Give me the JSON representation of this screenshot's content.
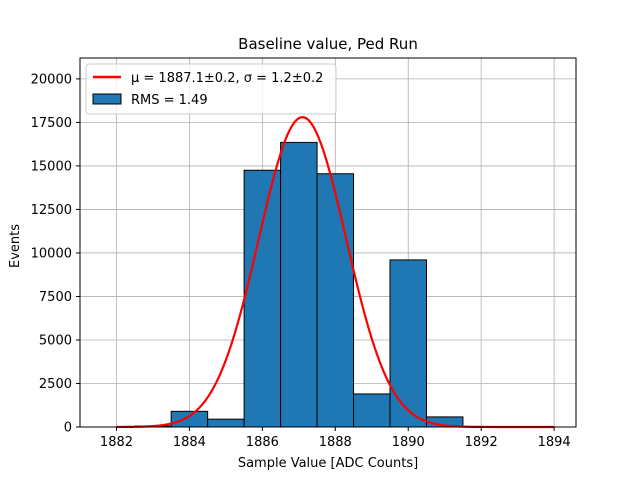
{
  "chart_data": {
    "type": "bar",
    "title": "Baseline value, Ped Run",
    "xlabel": "Sample Value [ADC Counts]",
    "ylabel": "Events",
    "xlim": [
      1881,
      1894.6
    ],
    "ylim": [
      0,
      21200
    ],
    "xticks": [
      1882,
      1884,
      1886,
      1888,
      1890,
      1892,
      1894
    ],
    "yticks": [
      0,
      2500,
      5000,
      7500,
      10000,
      12500,
      15000,
      17500,
      20000
    ],
    "grid": true,
    "legend_position": "top-left",
    "series": [
      {
        "name": "RMS = 1.49",
        "type": "histogram",
        "color": "#1f77b4",
        "edgecolor": "#000000",
        "bins": [
          {
            "x0": 1882.5,
            "x1": 1883.5,
            "value": 60
          },
          {
            "x0": 1883.5,
            "x1": 1884.5,
            "value": 900
          },
          {
            "x0": 1884.5,
            "x1": 1885.5,
            "value": 450
          },
          {
            "x0": 1885.5,
            "x1": 1886.5,
            "value": 14750
          },
          {
            "x0": 1886.5,
            "x1": 1887.5,
            "value": 16350
          },
          {
            "x0": 1887.5,
            "x1": 1888.5,
            "value": 14550
          },
          {
            "x0": 1888.5,
            "x1": 1889.5,
            "value": 1900
          },
          {
            "x0": 1889.5,
            "x1": 1890.5,
            "value": 9600
          },
          {
            "x0": 1890.5,
            "x1": 1891.5,
            "value": 580
          },
          {
            "x0": 1891.5,
            "x1": 1892.5,
            "value": 30
          }
        ]
      },
      {
        "name": "μ = 1887.1±0.2, σ = 1.2±0.2",
        "type": "gaussian_fit",
        "color": "#ff0000",
        "amplitude": 17800,
        "mean": 1887.1,
        "sigma": 1.2,
        "x_range": [
          1882,
          1894
        ]
      }
    ]
  }
}
